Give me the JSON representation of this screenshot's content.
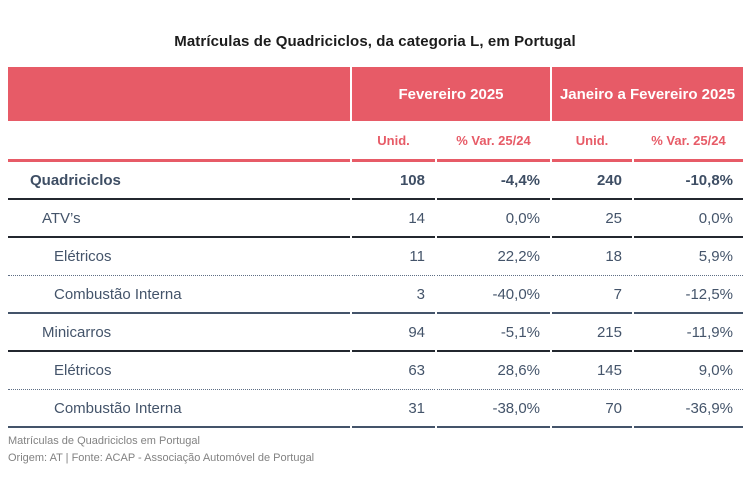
{
  "colors": {
    "accent_red": "#E75B67",
    "body_text": "#44546A",
    "heavy_line": "#23272F",
    "footer_text": "#828282"
  },
  "chart_data": {
    "type": "table",
    "title": "Matrículas de Quadriciclos, da categoria L, em Portugal",
    "column_groups": [
      {
        "label": "Fevereiro 2025"
      },
      {
        "label": "Janeiro a Fevereiro 2025"
      }
    ],
    "subheaders": [
      "Unid.",
      "% Var. 25/24",
      "Unid.",
      "% Var. 25/24"
    ],
    "rows": [
      {
        "label": "Quadriciclos",
        "level": 0,
        "values": [
          "108",
          "-4,4%",
          "240",
          "-10,8%"
        ]
      },
      {
        "label": "ATV’s",
        "level": 1,
        "values": [
          "14",
          "0,0%",
          "25",
          "0,0%"
        ]
      },
      {
        "label": "Elétricos",
        "level": 2,
        "values": [
          "11",
          "22,2%",
          "18",
          "5,9%"
        ]
      },
      {
        "label": "Combustão Interna",
        "level": 2,
        "values": [
          "3",
          "-40,0%",
          "7",
          "-12,5%"
        ]
      },
      {
        "label": "Minicarros",
        "level": 1,
        "values": [
          "94",
          "-5,1%",
          "215",
          "-11,9%"
        ]
      },
      {
        "label": "Elétricos",
        "level": 2,
        "values": [
          "63",
          "28,6%",
          "145",
          "9,0%"
        ]
      },
      {
        "label": "Combustão Interna",
        "level": 2,
        "values": [
          "31",
          "-38,0%",
          "70",
          "-36,9%"
        ]
      }
    ]
  },
  "footer": {
    "line1": "Matrículas de Quadriciclos em Portugal",
    "line2": "Origem: AT | Fonte: ACAP - Associação Automóvel de Portugal"
  }
}
